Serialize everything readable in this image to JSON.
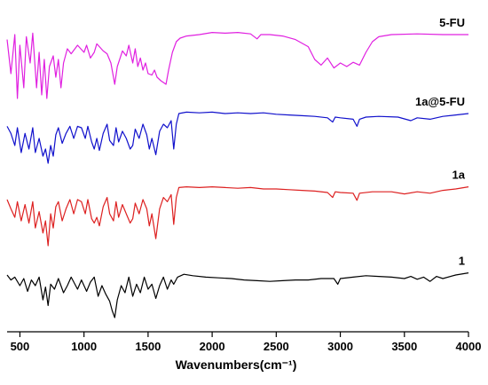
{
  "chart_data": {
    "type": "line",
    "title": "",
    "xlabel": "Wavenumbers(cm⁻¹)",
    "ylabel": "",
    "xlim": [
      400,
      4000
    ],
    "xticks": [
      500,
      1000,
      1500,
      2000,
      2500,
      3000,
      3500,
      4000
    ],
    "tick_labels": [
      "500",
      "1000",
      "1500",
      "2000",
      "2500",
      "3000",
      "3500",
      "4000"
    ],
    "grid": false,
    "legend": "inline labels at right end of each trace",
    "series": [
      {
        "name": "5-FU",
        "color": "#e020e0",
        "offset": 3.0,
        "points": [
          [
            400,
            0.88
          ],
          [
            430,
            0.4
          ],
          [
            460,
            0.95
          ],
          [
            480,
            0.05
          ],
          [
            500,
            0.8
          ],
          [
            530,
            0.2
          ],
          [
            550,
            0.92
          ],
          [
            580,
            0.55
          ],
          [
            600,
            0.97
          ],
          [
            630,
            0.2
          ],
          [
            650,
            0.7
          ],
          [
            670,
            0.1
          ],
          [
            690,
            0.6
          ],
          [
            710,
            0.05
          ],
          [
            730,
            0.5
          ],
          [
            760,
            0.65
          ],
          [
            780,
            0.35
          ],
          [
            800,
            0.6
          ],
          [
            820,
            0.2
          ],
          [
            840,
            0.55
          ],
          [
            870,
            0.75
          ],
          [
            900,
            0.68
          ],
          [
            950,
            0.8
          ],
          [
            1000,
            0.7
          ],
          [
            1020,
            0.8
          ],
          [
            1050,
            0.62
          ],
          [
            1080,
            0.7
          ],
          [
            1100,
            0.82
          ],
          [
            1150,
            0.72
          ],
          [
            1180,
            0.68
          ],
          [
            1210,
            0.55
          ],
          [
            1240,
            0.25
          ],
          [
            1260,
            0.5
          ],
          [
            1300,
            0.72
          ],
          [
            1330,
            0.65
          ],
          [
            1350,
            0.8
          ],
          [
            1380,
            0.55
          ],
          [
            1400,
            0.75
          ],
          [
            1420,
            0.5
          ],
          [
            1440,
            0.62
          ],
          [
            1460,
            0.45
          ],
          [
            1480,
            0.55
          ],
          [
            1500,
            0.4
          ],
          [
            1530,
            0.38
          ],
          [
            1550,
            0.45
          ],
          [
            1570,
            0.35
          ],
          [
            1600,
            0.3
          ],
          [
            1640,
            0.25
          ],
          [
            1660,
            0.45
          ],
          [
            1690,
            0.7
          ],
          [
            1720,
            0.85
          ],
          [
            1750,
            0.9
          ],
          [
            1800,
            0.93
          ],
          [
            1900,
            0.95
          ],
          [
            2000,
            0.98
          ],
          [
            2100,
            0.97
          ],
          [
            2200,
            0.98
          ],
          [
            2300,
            0.96
          ],
          [
            2350,
            0.89
          ],
          [
            2380,
            0.95
          ],
          [
            2450,
            0.95
          ],
          [
            2550,
            0.93
          ],
          [
            2650,
            0.88
          ],
          [
            2750,
            0.78
          ],
          [
            2800,
            0.6
          ],
          [
            2850,
            0.52
          ],
          [
            2900,
            0.62
          ],
          [
            2950,
            0.48
          ],
          [
            3000,
            0.55
          ],
          [
            3050,
            0.5
          ],
          [
            3100,
            0.56
          ],
          [
            3150,
            0.52
          ],
          [
            3200,
            0.7
          ],
          [
            3250,
            0.85
          ],
          [
            3300,
            0.92
          ],
          [
            3400,
            0.95
          ],
          [
            3600,
            0.96
          ],
          [
            3800,
            0.95
          ],
          [
            4000,
            0.95
          ]
        ]
      },
      {
        "name": "1a@5-FU",
        "color": "#1010cc",
        "offset": 2.0,
        "points": [
          [
            400,
            0.72
          ],
          [
            430,
            0.62
          ],
          [
            460,
            0.45
          ],
          [
            480,
            0.7
          ],
          [
            510,
            0.35
          ],
          [
            540,
            0.62
          ],
          [
            570,
            0.4
          ],
          [
            600,
            0.7
          ],
          [
            620,
            0.35
          ],
          [
            650,
            0.55
          ],
          [
            680,
            0.3
          ],
          [
            700,
            0.4
          ],
          [
            720,
            0.2
          ],
          [
            740,
            0.45
          ],
          [
            760,
            0.3
          ],
          [
            780,
            0.6
          ],
          [
            800,
            0.7
          ],
          [
            830,
            0.48
          ],
          [
            860,
            0.62
          ],
          [
            890,
            0.72
          ],
          [
            920,
            0.55
          ],
          [
            950,
            0.72
          ],
          [
            980,
            0.7
          ],
          [
            1010,
            0.55
          ],
          [
            1030,
            0.72
          ],
          [
            1060,
            0.5
          ],
          [
            1080,
            0.4
          ],
          [
            1100,
            0.55
          ],
          [
            1120,
            0.38
          ],
          [
            1150,
            0.62
          ],
          [
            1180,
            0.75
          ],
          [
            1200,
            0.52
          ],
          [
            1230,
            0.45
          ],
          [
            1250,
            0.7
          ],
          [
            1270,
            0.5
          ],
          [
            1300,
            0.65
          ],
          [
            1330,
            0.55
          ],
          [
            1360,
            0.4
          ],
          [
            1380,
            0.45
          ],
          [
            1400,
            0.68
          ],
          [
            1430,
            0.55
          ],
          [
            1460,
            0.75
          ],
          [
            1490,
            0.6
          ],
          [
            1510,
            0.4
          ],
          [
            1530,
            0.55
          ],
          [
            1560,
            0.32
          ],
          [
            1590,
            0.65
          ],
          [
            1620,
            0.75
          ],
          [
            1650,
            0.7
          ],
          [
            1680,
            0.8
          ],
          [
            1700,
            0.4
          ],
          [
            1720,
            0.75
          ],
          [
            1740,
            0.9
          ],
          [
            1800,
            0.92
          ],
          [
            1900,
            0.91
          ],
          [
            2000,
            0.92
          ],
          [
            2100,
            0.9
          ],
          [
            2200,
            0.91
          ],
          [
            2300,
            0.9
          ],
          [
            2400,
            0.91
          ],
          [
            2500,
            0.89
          ],
          [
            2600,
            0.88
          ],
          [
            2700,
            0.87
          ],
          [
            2800,
            0.86
          ],
          [
            2900,
            0.84
          ],
          [
            2940,
            0.78
          ],
          [
            2960,
            0.85
          ],
          [
            3000,
            0.84
          ],
          [
            3100,
            0.82
          ],
          [
            3130,
            0.72
          ],
          [
            3150,
            0.82
          ],
          [
            3200,
            0.85
          ],
          [
            3300,
            0.86
          ],
          [
            3450,
            0.85
          ],
          [
            3550,
            0.8
          ],
          [
            3600,
            0.84
          ],
          [
            3700,
            0.82
          ],
          [
            3800,
            0.86
          ],
          [
            3900,
            0.88
          ],
          [
            4000,
            0.9
          ]
        ]
      },
      {
        "name": "1a",
        "color": "#dd2020",
        "offset": 1.0,
        "points": [
          [
            400,
            0.75
          ],
          [
            430,
            0.62
          ],
          [
            460,
            0.5
          ],
          [
            480,
            0.72
          ],
          [
            510,
            0.45
          ],
          [
            540,
            0.68
          ],
          [
            570,
            0.42
          ],
          [
            600,
            0.72
          ],
          [
            620,
            0.35
          ],
          [
            650,
            0.58
          ],
          [
            680,
            0.28
          ],
          [
            700,
            0.45
          ],
          [
            720,
            0.1
          ],
          [
            740,
            0.55
          ],
          [
            760,
            0.35
          ],
          [
            780,
            0.65
          ],
          [
            800,
            0.72
          ],
          [
            830,
            0.45
          ],
          [
            860,
            0.62
          ],
          [
            890,
            0.75
          ],
          [
            920,
            0.55
          ],
          [
            950,
            0.75
          ],
          [
            980,
            0.72
          ],
          [
            1010,
            0.55
          ],
          [
            1030,
            0.75
          ],
          [
            1060,
            0.48
          ],
          [
            1080,
            0.42
          ],
          [
            1100,
            0.5
          ],
          [
            1120,
            0.38
          ],
          [
            1150,
            0.65
          ],
          [
            1180,
            0.78
          ],
          [
            1200,
            0.55
          ],
          [
            1230,
            0.45
          ],
          [
            1250,
            0.72
          ],
          [
            1270,
            0.5
          ],
          [
            1300,
            0.68
          ],
          [
            1330,
            0.55
          ],
          [
            1360,
            0.42
          ],
          [
            1380,
            0.48
          ],
          [
            1400,
            0.7
          ],
          [
            1430,
            0.55
          ],
          [
            1460,
            0.75
          ],
          [
            1490,
            0.62
          ],
          [
            1510,
            0.38
          ],
          [
            1530,
            0.55
          ],
          [
            1560,
            0.2
          ],
          [
            1590,
            0.62
          ],
          [
            1620,
            0.78
          ],
          [
            1650,
            0.72
          ],
          [
            1680,
            0.82
          ],
          [
            1700,
            0.4
          ],
          [
            1720,
            0.78
          ],
          [
            1740,
            0.92
          ],
          [
            1800,
            0.93
          ],
          [
            1900,
            0.92
          ],
          [
            2000,
            0.93
          ],
          [
            2100,
            0.92
          ],
          [
            2200,
            0.91
          ],
          [
            2300,
            0.92
          ],
          [
            2400,
            0.9
          ],
          [
            2500,
            0.9
          ],
          [
            2600,
            0.89
          ],
          [
            2700,
            0.88
          ],
          [
            2800,
            0.87
          ],
          [
            2900,
            0.85
          ],
          [
            2940,
            0.78
          ],
          [
            2960,
            0.86
          ],
          [
            3000,
            0.85
          ],
          [
            3100,
            0.84
          ],
          [
            3130,
            0.74
          ],
          [
            3150,
            0.84
          ],
          [
            3250,
            0.86
          ],
          [
            3400,
            0.86
          ],
          [
            3500,
            0.83
          ],
          [
            3600,
            0.86
          ],
          [
            3700,
            0.84
          ],
          [
            3800,
            0.88
          ],
          [
            3900,
            0.9
          ],
          [
            4000,
            0.93
          ]
        ]
      },
      {
        "name": "1",
        "color": "#000000",
        "offset": 0.0,
        "points": [
          [
            400,
            0.75
          ],
          [
            430,
            0.68
          ],
          [
            460,
            0.72
          ],
          [
            500,
            0.6
          ],
          [
            530,
            0.7
          ],
          [
            560,
            0.52
          ],
          [
            590,
            0.68
          ],
          [
            620,
            0.6
          ],
          [
            650,
            0.72
          ],
          [
            680,
            0.4
          ],
          [
            700,
            0.58
          ],
          [
            720,
            0.32
          ],
          [
            740,
            0.62
          ],
          [
            770,
            0.55
          ],
          [
            800,
            0.7
          ],
          [
            840,
            0.5
          ],
          [
            870,
            0.6
          ],
          [
            900,
            0.72
          ],
          [
            950,
            0.55
          ],
          [
            980,
            0.68
          ],
          [
            1020,
            0.52
          ],
          [
            1050,
            0.65
          ],
          [
            1080,
            0.72
          ],
          [
            1110,
            0.45
          ],
          [
            1140,
            0.6
          ],
          [
            1170,
            0.48
          ],
          [
            1200,
            0.38
          ],
          [
            1220,
            0.25
          ],
          [
            1240,
            0.15
          ],
          [
            1260,
            0.4
          ],
          [
            1290,
            0.6
          ],
          [
            1320,
            0.5
          ],
          [
            1350,
            0.72
          ],
          [
            1380,
            0.45
          ],
          [
            1410,
            0.62
          ],
          [
            1440,
            0.5
          ],
          [
            1470,
            0.72
          ],
          [
            1500,
            0.55
          ],
          [
            1530,
            0.62
          ],
          [
            1560,
            0.42
          ],
          [
            1590,
            0.6
          ],
          [
            1620,
            0.72
          ],
          [
            1650,
            0.55
          ],
          [
            1680,
            0.68
          ],
          [
            1700,
            0.62
          ],
          [
            1730,
            0.72
          ],
          [
            1780,
            0.76
          ],
          [
            1850,
            0.74
          ],
          [
            1950,
            0.72
          ],
          [
            2050,
            0.71
          ],
          [
            2150,
            0.7
          ],
          [
            2250,
            0.68
          ],
          [
            2350,
            0.67
          ],
          [
            2450,
            0.66
          ],
          [
            2550,
            0.67
          ],
          [
            2650,
            0.68
          ],
          [
            2750,
            0.68
          ],
          [
            2850,
            0.7
          ],
          [
            2950,
            0.7
          ],
          [
            2980,
            0.62
          ],
          [
            3000,
            0.7
          ],
          [
            3100,
            0.72
          ],
          [
            3200,
            0.74
          ],
          [
            3300,
            0.73
          ],
          [
            3400,
            0.72
          ],
          [
            3500,
            0.7
          ],
          [
            3550,
            0.73
          ],
          [
            3600,
            0.69
          ],
          [
            3650,
            0.72
          ],
          [
            3700,
            0.66
          ],
          [
            3750,
            0.73
          ],
          [
            3800,
            0.7
          ],
          [
            3900,
            0.75
          ],
          [
            4000,
            0.78
          ]
        ]
      }
    ]
  }
}
